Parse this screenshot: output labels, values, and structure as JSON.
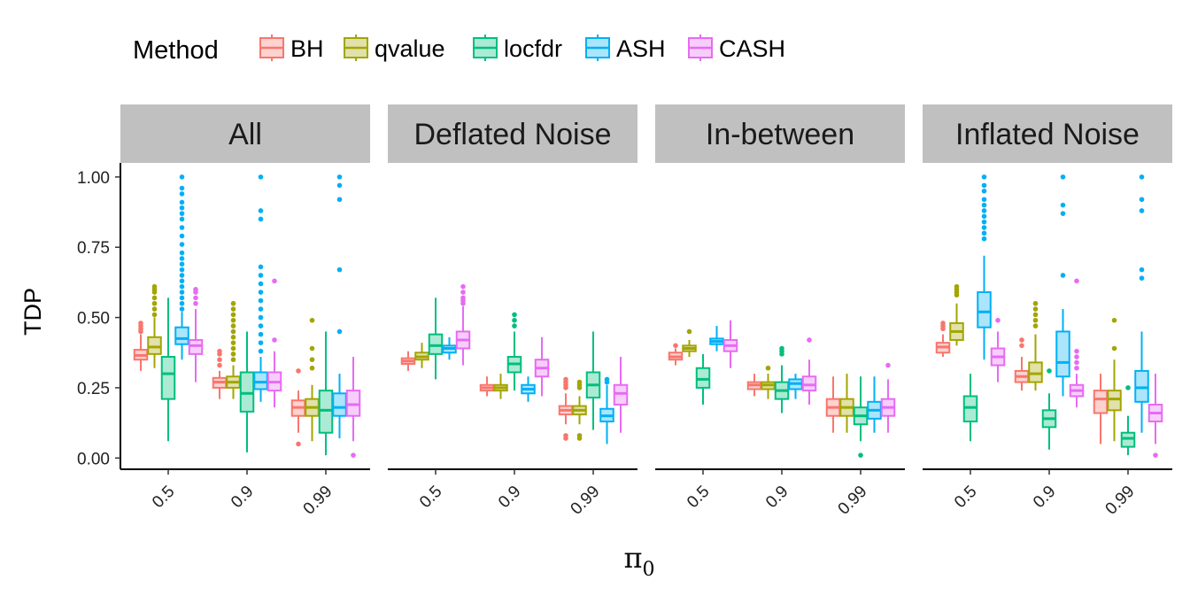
{
  "chart_data": {
    "type": "boxplot",
    "ylabel": "TDP",
    "xlabel": "π",
    "xlabel_subscript": "0",
    "legend": {
      "title": "Method",
      "position": "top",
      "entries": [
        "BH",
        "qvalue",
        "locfdr",
        "ASH",
        "CASH"
      ]
    },
    "colors": {
      "BH": "#F8766D",
      "qvalue": "#A3A500",
      "locfdr": "#00BF7D",
      "ASH": "#00B0F6",
      "CASH": "#E76BF3"
    },
    "ylim": [
      -0.04,
      1.05
    ],
    "yticks": [
      0.0,
      0.25,
      0.5,
      0.75,
      1.0
    ],
    "ytick_labels": [
      "0.00",
      "0.25",
      "0.50",
      "0.75",
      "1.00"
    ],
    "categories": [
      "0.5",
      "0.9",
      "0.99"
    ],
    "grid": false,
    "panels": [
      {
        "label": "All",
        "groups": [
          {
            "x": "0.5",
            "boxes": {
              "BH": {
                "q1": 0.35,
                "median": 0.365,
                "q3": 0.385,
                "wlow": 0.31,
                "whigh": 0.44,
                "outliers": [
                  0.45,
                  0.46,
                  0.47,
                  0.48
                ]
              },
              "qvalue": {
                "q1": 0.37,
                "median": 0.395,
                "q3": 0.43,
                "wlow": 0.32,
                "whigh": 0.5,
                "outliers": [
                  0.51,
                  0.53,
                  0.55,
                  0.57,
                  0.59,
                  0.6,
                  0.61
                ]
              },
              "locfdr": {
                "q1": 0.21,
                "median": 0.3,
                "q3": 0.36,
                "wlow": 0.06,
                "whigh": 0.57,
                "outliers": []
              },
              "ASH": {
                "q1": 0.405,
                "median": 0.425,
                "q3": 0.465,
                "wlow": 0.35,
                "whigh": 0.52,
                "outliers": [
                  0.53,
                  0.55,
                  0.57,
                  0.59,
                  0.61,
                  0.63,
                  0.65,
                  0.67,
                  0.69,
                  0.71,
                  0.73,
                  0.76,
                  0.79,
                  0.82,
                  0.85,
                  0.87,
                  0.89,
                  0.91,
                  0.94,
                  0.96,
                  1.0
                ]
              },
              "CASH": {
                "q1": 0.37,
                "median": 0.4,
                "q3": 0.42,
                "wlow": 0.27,
                "whigh": 0.53,
                "outliers": [
                  0.55,
                  0.57,
                  0.59,
                  0.6
                ]
              }
            }
          },
          {
            "x": "0.9",
            "boxes": {
              "BH": {
                "q1": 0.25,
                "median": 0.27,
                "q3": 0.285,
                "wlow": 0.21,
                "whigh": 0.31,
                "outliers": [
                  0.33,
                  0.35,
                  0.37,
                  0.38
                ]
              },
              "qvalue": {
                "q1": 0.25,
                "median": 0.27,
                "q3": 0.29,
                "wlow": 0.21,
                "whigh": 0.33,
                "outliers": [
                  0.35,
                  0.37,
                  0.39,
                  0.41,
                  0.43,
                  0.45,
                  0.47,
                  0.49,
                  0.51,
                  0.53,
                  0.55
                ]
              },
              "locfdr": {
                "q1": 0.165,
                "median": 0.23,
                "q3": 0.305,
                "wlow": 0.02,
                "whigh": 0.45,
                "outliers": []
              },
              "ASH": {
                "q1": 0.245,
                "median": 0.27,
                "q3": 0.305,
                "wlow": 0.2,
                "whigh": 0.36,
                "outliers": [
                  0.38,
                  0.41,
                  0.44,
                  0.47,
                  0.5,
                  0.53,
                  0.56,
                  0.59,
                  0.62,
                  0.65,
                  0.68,
                  0.85,
                  0.88,
                  1.0
                ]
              },
              "CASH": {
                "q1": 0.24,
                "median": 0.27,
                "q3": 0.305,
                "wlow": 0.18,
                "whigh": 0.38,
                "outliers": [
                  0.42,
                  0.63
                ]
              }
            }
          },
          {
            "x": "0.99",
            "boxes": {
              "BH": {
                "q1": 0.15,
                "median": 0.18,
                "q3": 0.205,
                "wlow": 0.09,
                "whigh": 0.24,
                "outliers": [
                  0.05,
                  0.31
                ]
              },
              "qvalue": {
                "q1": 0.15,
                "median": 0.18,
                "q3": 0.21,
                "wlow": 0.06,
                "whigh": 0.26,
                "outliers": [
                  0.32,
                  0.35,
                  0.39,
                  0.49
                ]
              },
              "locfdr": {
                "q1": 0.09,
                "median": 0.17,
                "q3": 0.24,
                "wlow": 0.01,
                "whigh": 0.45,
                "outliers": []
              },
              "ASH": {
                "q1": 0.15,
                "median": 0.18,
                "q3": 0.23,
                "wlow": 0.07,
                "whigh": 0.3,
                "outliers": [
                  0.45,
                  0.67,
                  0.92,
                  0.97,
                  1.0
                ]
              },
              "CASH": {
                "q1": 0.15,
                "median": 0.19,
                "q3": 0.24,
                "wlow": 0.06,
                "whigh": 0.36,
                "outliers": [
                  0.01
                ]
              }
            }
          }
        ]
      },
      {
        "label": "Deflated Noise",
        "groups": [
          {
            "x": "0.5",
            "boxes": {
              "BH": {
                "q1": 0.335,
                "median": 0.345,
                "q3": 0.355,
                "wlow": 0.31,
                "whigh": 0.38,
                "outliers": []
              },
              "qvalue": {
                "q1": 0.35,
                "median": 0.36,
                "q3": 0.375,
                "wlow": 0.32,
                "whigh": 0.41,
                "outliers": []
              },
              "locfdr": {
                "q1": 0.37,
                "median": 0.4,
                "q3": 0.44,
                "wlow": 0.28,
                "whigh": 0.57,
                "outliers": []
              },
              "ASH": {
                "q1": 0.375,
                "median": 0.39,
                "q3": 0.4,
                "wlow": 0.35,
                "whigh": 0.43,
                "outliers": []
              },
              "CASH": {
                "q1": 0.39,
                "median": 0.42,
                "q3": 0.45,
                "wlow": 0.33,
                "whigh": 0.54,
                "outliers": [
                  0.55,
                  0.56,
                  0.57,
                  0.59,
                  0.61
                ]
              }
            }
          },
          {
            "x": "0.9",
            "boxes": {
              "BH": {
                "q1": 0.24,
                "median": 0.25,
                "q3": 0.26,
                "wlow": 0.22,
                "whigh": 0.29,
                "outliers": []
              },
              "qvalue": {
                "q1": 0.24,
                "median": 0.25,
                "q3": 0.26,
                "wlow": 0.21,
                "whigh": 0.3,
                "outliers": []
              },
              "locfdr": {
                "q1": 0.305,
                "median": 0.335,
                "q3": 0.36,
                "wlow": 0.24,
                "whigh": 0.45,
                "outliers": [
                  0.47,
                  0.49,
                  0.51
                ]
              },
              "ASH": {
                "q1": 0.23,
                "median": 0.245,
                "q3": 0.26,
                "wlow": 0.2,
                "whigh": 0.29,
                "outliers": []
              },
              "CASH": {
                "q1": 0.29,
                "median": 0.32,
                "q3": 0.35,
                "wlow": 0.22,
                "whigh": 0.43,
                "outliers": []
              }
            }
          },
          {
            "x": "0.99",
            "boxes": {
              "BH": {
                "q1": 0.155,
                "median": 0.17,
                "q3": 0.185,
                "wlow": 0.12,
                "whigh": 0.23,
                "outliers": [
                  0.07,
                  0.08,
                  0.25,
                  0.26,
                  0.27,
                  0.28
                ]
              },
              "qvalue": {
                "q1": 0.155,
                "median": 0.17,
                "q3": 0.185,
                "wlow": 0.12,
                "whigh": 0.22,
                "outliers": [
                  0.07,
                  0.08,
                  0.25,
                  0.26,
                  0.27
                ]
              },
              "locfdr": {
                "q1": 0.215,
                "median": 0.26,
                "q3": 0.305,
                "wlow": 0.1,
                "whigh": 0.45,
                "outliers": []
              },
              "ASH": {
                "q1": 0.13,
                "median": 0.15,
                "q3": 0.175,
                "wlow": 0.05,
                "whigh": 0.26,
                "outliers": [
                  0.27,
                  0.28
                ]
              },
              "CASH": {
                "q1": 0.19,
                "median": 0.23,
                "q3": 0.26,
                "wlow": 0.09,
                "whigh": 0.36,
                "outliers": []
              }
            }
          }
        ]
      },
      {
        "label": "In-between",
        "groups": [
          {
            "x": "0.5",
            "boxes": {
              "BH": {
                "q1": 0.35,
                "median": 0.36,
                "q3": 0.375,
                "wlow": 0.33,
                "whigh": 0.39,
                "outliers": [
                  0.4
                ]
              },
              "qvalue": {
                "q1": 0.38,
                "median": 0.39,
                "q3": 0.4,
                "wlow": 0.36,
                "whigh": 0.42,
                "outliers": [
                  0.45
                ]
              },
              "locfdr": {
                "q1": 0.25,
                "median": 0.28,
                "q3": 0.32,
                "wlow": 0.19,
                "whigh": 0.37,
                "outliers": []
              },
              "ASH": {
                "q1": 0.405,
                "median": 0.415,
                "q3": 0.425,
                "wlow": 0.38,
                "whigh": 0.47,
                "outliers": []
              },
              "CASH": {
                "q1": 0.38,
                "median": 0.4,
                "q3": 0.42,
                "wlow": 0.32,
                "whigh": 0.49,
                "outliers": []
              }
            }
          },
          {
            "x": "0.9",
            "boxes": {
              "BH": {
                "q1": 0.245,
                "median": 0.26,
                "q3": 0.27,
                "wlow": 0.22,
                "whigh": 0.3,
                "outliers": []
              },
              "qvalue": {
                "q1": 0.245,
                "median": 0.26,
                "q3": 0.27,
                "wlow": 0.21,
                "whigh": 0.3,
                "outliers": [
                  0.32
                ]
              },
              "locfdr": {
                "q1": 0.21,
                "median": 0.24,
                "q3": 0.27,
                "wlow": 0.16,
                "whigh": 0.33,
                "outliers": [
                  0.37,
                  0.38,
                  0.39
                ]
              },
              "ASH": {
                "q1": 0.245,
                "median": 0.265,
                "q3": 0.28,
                "wlow": 0.21,
                "whigh": 0.3,
                "outliers": []
              },
              "CASH": {
                "q1": 0.24,
                "median": 0.26,
                "q3": 0.29,
                "wlow": 0.19,
                "whigh": 0.35,
                "outliers": [
                  0.42
                ]
              }
            }
          },
          {
            "x": "0.99",
            "boxes": {
              "BH": {
                "q1": 0.15,
                "median": 0.18,
                "q3": 0.21,
                "wlow": 0.09,
                "whigh": 0.29,
                "outliers": []
              },
              "qvalue": {
                "q1": 0.15,
                "median": 0.18,
                "q3": 0.21,
                "wlow": 0.09,
                "whigh": 0.3,
                "outliers": []
              },
              "locfdr": {
                "q1": 0.12,
                "median": 0.15,
                "q3": 0.18,
                "wlow": 0.06,
                "whigh": 0.29,
                "outliers": [
                  0.01
                ]
              },
              "ASH": {
                "q1": 0.14,
                "median": 0.17,
                "q3": 0.2,
                "wlow": 0.09,
                "whigh": 0.29,
                "outliers": []
              },
              "CASH": {
                "q1": 0.15,
                "median": 0.18,
                "q3": 0.21,
                "wlow": 0.09,
                "whigh": 0.28,
                "outliers": [
                  0.33
                ]
              }
            }
          }
        ]
      },
      {
        "label": "Inflated Noise",
        "groups": [
          {
            "x": "0.5",
            "boxes": {
              "BH": {
                "q1": 0.375,
                "median": 0.395,
                "q3": 0.41,
                "wlow": 0.36,
                "whigh": 0.44,
                "outliers": [
                  0.46,
                  0.47,
                  0.48
                ]
              },
              "qvalue": {
                "q1": 0.42,
                "median": 0.45,
                "q3": 0.48,
                "wlow": 0.4,
                "whigh": 0.55,
                "outliers": [
                  0.58,
                  0.59,
                  0.6,
                  0.61
                ]
              },
              "locfdr": {
                "q1": 0.13,
                "median": 0.18,
                "q3": 0.22,
                "wlow": 0.06,
                "whigh": 0.3,
                "outliers": []
              },
              "ASH": {
                "q1": 0.465,
                "median": 0.52,
                "q3": 0.59,
                "wlow": 0.35,
                "whigh": 0.72,
                "outliers": [
                  0.78,
                  0.8,
                  0.82,
                  0.84,
                  0.86,
                  0.88,
                  0.9,
                  0.92,
                  0.95,
                  0.97,
                  1.0
                ]
              },
              "CASH": {
                "q1": 0.33,
                "median": 0.36,
                "q3": 0.39,
                "wlow": 0.27,
                "whigh": 0.45,
                "outliers": [
                  0.49
                ]
              }
            }
          },
          {
            "x": "0.9",
            "boxes": {
              "BH": {
                "q1": 0.27,
                "median": 0.29,
                "q3": 0.31,
                "wlow": 0.24,
                "whigh": 0.36,
                "outliers": [
                  0.4,
                  0.42
                ]
              },
              "qvalue": {
                "q1": 0.27,
                "median": 0.3,
                "q3": 0.34,
                "wlow": 0.24,
                "whigh": 0.44,
                "outliers": [
                  0.47,
                  0.49,
                  0.51,
                  0.53,
                  0.55
                ]
              },
              "locfdr": {
                "q1": 0.11,
                "median": 0.14,
                "q3": 0.17,
                "wlow": 0.03,
                "whigh": 0.23,
                "outliers": [
                  0.31
                ]
              },
              "ASH": {
                "q1": 0.29,
                "median": 0.34,
                "q3": 0.45,
                "wlow": 0.22,
                "whigh": 0.53,
                "outliers": [
                  0.65,
                  0.87,
                  0.9,
                  1.0
                ]
              },
              "CASH": {
                "q1": 0.22,
                "median": 0.24,
                "q3": 0.26,
                "wlow": 0.18,
                "whigh": 0.3,
                "outliers": [
                  0.32,
                  0.34,
                  0.36,
                  0.38,
                  0.63
                ]
              }
            }
          },
          {
            "x": "0.99",
            "boxes": {
              "BH": {
                "q1": 0.16,
                "median": 0.21,
                "q3": 0.24,
                "wlow": 0.05,
                "whigh": 0.3,
                "outliers": []
              },
              "qvalue": {
                "q1": 0.17,
                "median": 0.21,
                "q3": 0.24,
                "wlow": 0.06,
                "whigh": 0.35,
                "outliers": [
                  0.39,
                  0.49
                ]
              },
              "locfdr": {
                "q1": 0.04,
                "median": 0.07,
                "q3": 0.09,
                "wlow": 0.01,
                "whigh": 0.15,
                "outliers": [
                  0.25
                ]
              },
              "ASH": {
                "q1": 0.2,
                "median": 0.25,
                "q3": 0.31,
                "wlow": 0.09,
                "whigh": 0.45,
                "outliers": [
                  0.64,
                  0.67,
                  0.88,
                  0.92,
                  1.0
                ]
              },
              "CASH": {
                "q1": 0.13,
                "median": 0.16,
                "q3": 0.19,
                "wlow": 0.05,
                "whigh": 0.3,
                "outliers": [
                  0.01
                ]
              }
            }
          }
        ]
      }
    ]
  }
}
